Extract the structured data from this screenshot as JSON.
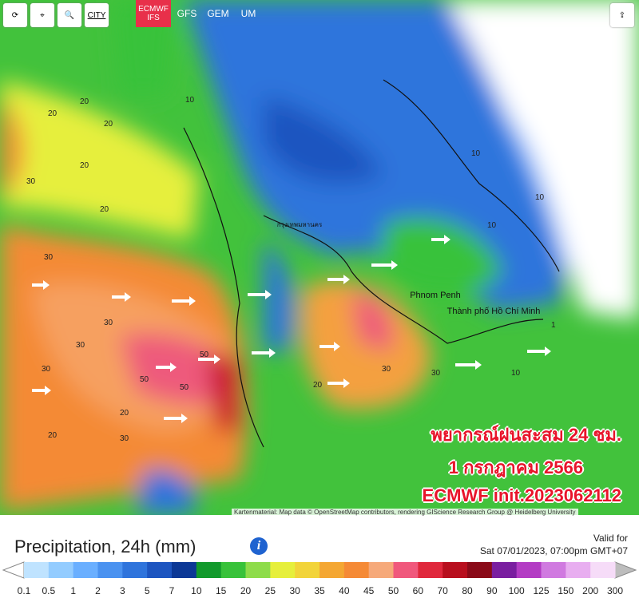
{
  "toolbar": {
    "city_button": "CITY",
    "models": [
      "ECMWF IFS",
      "GFS",
      "GEM",
      "UM"
    ]
  },
  "map": {
    "place_labels": [
      "กรุงเทพมหานคร",
      "Phnom Penh",
      "Thành phố Hồ Chí Minh"
    ],
    "contour_labels": [
      "20",
      "30",
      "20",
      "30",
      "20",
      "30",
      "50",
      "50",
      "30",
      "30",
      "20",
      "10",
      "20",
      "30",
      "50",
      "30",
      "20",
      "10",
      "10",
      "10",
      "20",
      "20",
      "30",
      "1",
      "10"
    ],
    "overlay": [
      "พยากรณ์ฝนสะสม 24 ชม.",
      "1 กรกฎาคม 2566",
      "ECMWF init.2023062112"
    ],
    "attribution": "Kartenmaterial: Map data © OpenStreetMap contributors, rendering GIScience Research Group @ Heidelberg University"
  },
  "footer": {
    "title": "Precipitation, 24h (mm)",
    "valid_label": "Valid for",
    "valid_time": "Sat 07/01/2023, 07:00pm GMT+07"
  },
  "legend": {
    "labels": [
      "0.1",
      "0.5",
      "1",
      "2",
      "3",
      "5",
      "7",
      "10",
      "15",
      "20",
      "25",
      "30",
      "35",
      "40",
      "45",
      "50",
      "60",
      "70",
      "80",
      "90",
      "100",
      "125",
      "150",
      "200",
      "300"
    ],
    "colors": [
      "#bfe3ff",
      "#93ccff",
      "#6aafff",
      "#4a92f0",
      "#2f74dc",
      "#1d55c0",
      "#0c3896",
      "#129a2c",
      "#38c23a",
      "#8edc4a",
      "#e6ef3c",
      "#f2d43a",
      "#f4a733",
      "#f58a36",
      "#f6a97a",
      "#f0587c",
      "#e0283c",
      "#b80f1e",
      "#8a0a18",
      "#7a1ea0",
      "#b33cc4",
      "#d07ae0",
      "#e8aef0",
      "#f6dcf8"
    ],
    "left_end": "#ffffff",
    "right_end": "#bdbdbd"
  }
}
